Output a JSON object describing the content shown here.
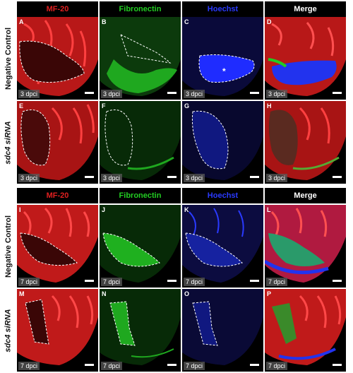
{
  "columns": [
    {
      "label": "MF-20",
      "color": "#e02020"
    },
    {
      "label": "Fibronectin",
      "color": "#22cc22"
    },
    {
      "label": "Hoechst",
      "color": "#2a3aff"
    },
    {
      "label": "Merge",
      "color": "#ffffff"
    }
  ],
  "rows": [
    {
      "label": "Negative Control",
      "dpci": "3 dpci",
      "panels": [
        "A",
        "B",
        "C",
        "D"
      ]
    },
    {
      "label": "sdc4 siRNA",
      "dpci": "3 dpci",
      "panels": [
        "E",
        "F",
        "G",
        "H"
      ]
    },
    {
      "label": "Negative Control",
      "dpci": "7 dpci",
      "panels": [
        "I",
        "J",
        "K",
        "L"
      ]
    },
    {
      "label": "sdc4 siRNA",
      "dpci": "7 dpci",
      "panels": [
        "M",
        "N",
        "O",
        "P"
      ]
    }
  ],
  "asterisk": "*"
}
